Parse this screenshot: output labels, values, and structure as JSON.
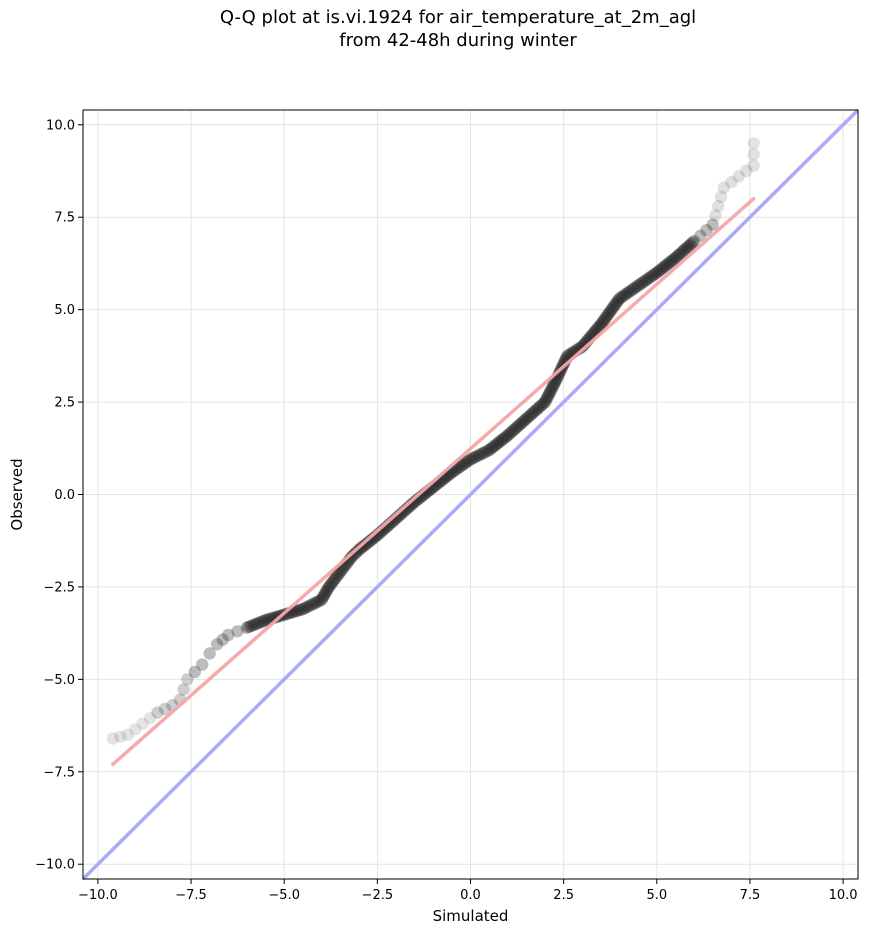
{
  "chart_data": {
    "type": "scatter",
    "title": "Q-Q plot at is.vi.1924 for air_temperature_at_2m_agl",
    "subtitle": "from 42-48h during winter",
    "xlabel": "Simulated",
    "ylabel": "Observed",
    "xlim": [
      -10.4,
      10.4
    ],
    "ylim": [
      -10.4,
      10.4
    ],
    "xticks": [
      -10.0,
      -7.5,
      -5.0,
      -2.5,
      0.0,
      2.5,
      5.0,
      7.5,
      10.0
    ],
    "yticks": [
      -10.0,
      -7.5,
      -5.0,
      -2.5,
      0.0,
      2.5,
      5.0,
      7.5,
      10.0
    ],
    "xtick_labels": [
      "−10.0",
      "−7.5",
      "−5.0",
      "−2.5",
      "0.0",
      "2.5",
      "5.0",
      "7.5",
      "10.0"
    ],
    "ytick_labels": [
      "−10.0",
      "−7.5",
      "−5.0",
      "−2.5",
      "0.0",
      "2.5",
      "5.0",
      "7.5",
      "10.0"
    ],
    "grid": true,
    "quantile_curve": [
      [
        -9.6,
        -6.6
      ],
      [
        -9.2,
        -6.5
      ],
      [
        -8.8,
        -6.2
      ],
      [
        -8.4,
        -5.9
      ],
      [
        -8.0,
        -5.7
      ],
      [
        -7.8,
        -5.55
      ],
      [
        -7.6,
        -5.0
      ],
      [
        -7.4,
        -4.8
      ],
      [
        -7.2,
        -4.6
      ],
      [
        -7.0,
        -4.3
      ],
      [
        -6.8,
        -4.05
      ],
      [
        -6.5,
        -3.8
      ],
      [
        -6.0,
        -3.6
      ],
      [
        -5.5,
        -3.4
      ],
      [
        -5.0,
        -3.25
      ],
      [
        -4.5,
        -3.1
      ],
      [
        -4.0,
        -2.85
      ],
      [
        -3.8,
        -2.5
      ],
      [
        -3.5,
        -2.1
      ],
      [
        -3.2,
        -1.7
      ],
      [
        -3.0,
        -1.5
      ],
      [
        -2.5,
        -1.1
      ],
      [
        -2.0,
        -0.65
      ],
      [
        -1.5,
        -0.2
      ],
      [
        -1.0,
        0.2
      ],
      [
        -0.5,
        0.6
      ],
      [
        0.0,
        0.95
      ],
      [
        0.5,
        1.2
      ],
      [
        1.0,
        1.6
      ],
      [
        1.5,
        2.05
      ],
      [
        2.0,
        2.5
      ],
      [
        2.3,
        3.1
      ],
      [
        2.6,
        3.75
      ],
      [
        3.0,
        4.0
      ],
      [
        3.5,
        4.6
      ],
      [
        4.0,
        5.3
      ],
      [
        4.5,
        5.65
      ],
      [
        5.0,
        6.0
      ],
      [
        5.5,
        6.4
      ],
      [
        6.0,
        6.85
      ],
      [
        6.5,
        7.3
      ],
      [
        6.8,
        8.3
      ],
      [
        7.2,
        8.6
      ],
      [
        7.6,
        8.9
      ],
      [
        7.6,
        9.5
      ]
    ],
    "fit_line": {
      "x": [
        -9.6,
        7.6
      ],
      "y": [
        -7.3,
        8.0
      ],
      "color": "#f4a6a6"
    },
    "identity_line": {
      "x": [
        -10.4,
        10.4
      ],
      "y": [
        -10.4,
        10.4
      ],
      "color": "#aaaaf8"
    },
    "marker_color": "#222222"
  }
}
